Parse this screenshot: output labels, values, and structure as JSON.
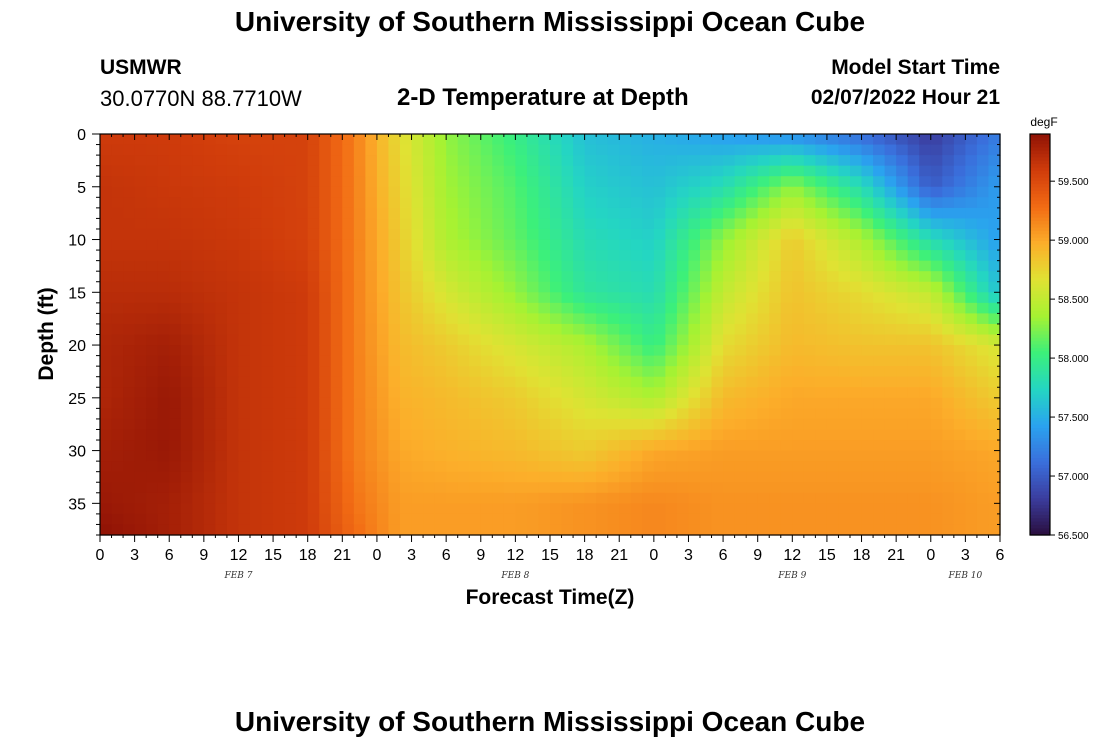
{
  "header": {
    "title": "University of Southern Mississippi Ocean Cube",
    "station": "USMWR",
    "coords": "30.0770N  88.7710W",
    "plot_title": "2-D Temperature at Depth",
    "start_label": "Model Start Time",
    "start_value": "02/07/2022 Hour 21"
  },
  "footer": {
    "title": "University of Southern Mississippi Ocean Cube"
  },
  "chart_data": {
    "type": "heatmap",
    "xlabel": "Forecast Time(Z)",
    "ylabel": "Depth (ft)",
    "x_range_hours": [
      0,
      78
    ],
    "ylim": [
      0,
      38
    ],
    "y_inverted": true,
    "x_tick_labels": [
      "0",
      "3",
      "6",
      "9",
      "12",
      "15",
      "18",
      "21",
      "0",
      "3",
      "6",
      "9",
      "12",
      "15",
      "18",
      "21",
      "0",
      "3",
      "6",
      "9",
      "12",
      "15",
      "18",
      "21",
      "0",
      "3",
      "6"
    ],
    "y_tick_labels": [
      "0",
      "5",
      "10",
      "15",
      "20",
      "25",
      "30",
      "35"
    ],
    "y_ticks": [
      0,
      5,
      10,
      15,
      20,
      25,
      30,
      35
    ],
    "day_labels": [
      {
        "label": "FEB 7",
        "hour": 12
      },
      {
        "label": "FEB 8",
        "hour": 36
      },
      {
        "label": "FEB 9",
        "hour": 60
      },
      {
        "label": "FEB 10",
        "hour": 75
      }
    ],
    "colorbar": {
      "unit": "degF",
      "min": 56.5,
      "max": 59.9,
      "ticks": [
        56.5,
        57.0,
        57.5,
        58.0,
        58.5,
        59.0,
        59.5
      ],
      "tick_labels": [
        "56.500",
        "57.000",
        "57.500",
        "58.000",
        "58.500",
        "59.000",
        "59.500"
      ],
      "colormap": [
        "#2a0e3e",
        "#3b3d9e",
        "#3a6fdc",
        "#2aa3ef",
        "#24d6c2",
        "#3cf07a",
        "#a6f232",
        "#e0e233",
        "#fcae2a",
        "#f26b14",
        "#d03c0b",
        "#8f1205"
      ]
    },
    "depth_levels_ft": [
      0,
      5,
      10,
      15,
      20,
      25,
      30,
      35,
      38
    ],
    "time_points_hours": [
      0,
      6,
      12,
      18,
      22,
      26,
      30,
      36,
      42,
      48,
      54,
      60,
      66,
      72,
      78
    ],
    "temperature_degF": [
      [
        59.6,
        59.6,
        59.55,
        59.55,
        59.2,
        58.7,
        58.3,
        58.0,
        57.6,
        57.5,
        57.4,
        57.3,
        57.1,
        56.8,
        57.2
      ],
      [
        59.65,
        59.62,
        59.6,
        59.55,
        59.2,
        58.75,
        58.35,
        58.1,
        57.7,
        57.6,
        57.8,
        58.3,
        57.8,
        57.0,
        57.4
      ],
      [
        59.65,
        59.65,
        59.62,
        59.55,
        59.2,
        58.8,
        58.4,
        58.15,
        57.8,
        57.7,
        58.3,
        58.8,
        58.4,
        57.8,
        57.4
      ],
      [
        59.7,
        59.7,
        59.65,
        59.6,
        59.2,
        58.85,
        58.6,
        58.3,
        57.9,
        57.8,
        58.5,
        58.85,
        58.7,
        58.5,
        57.6
      ],
      [
        59.75,
        59.8,
        59.65,
        59.6,
        59.2,
        58.9,
        58.8,
        58.6,
        58.4,
        58.0,
        58.7,
        58.9,
        58.85,
        58.85,
        58.6
      ],
      [
        59.75,
        59.85,
        59.65,
        59.6,
        59.2,
        58.95,
        58.9,
        58.8,
        58.6,
        58.4,
        58.9,
        59.0,
        59.0,
        59.0,
        58.8
      ],
      [
        59.8,
        59.85,
        59.65,
        59.6,
        59.2,
        59.0,
        58.95,
        58.9,
        58.8,
        59.0,
        59.05,
        59.05,
        59.05,
        59.05,
        59.0
      ],
      [
        59.85,
        59.8,
        59.65,
        59.6,
        59.25,
        59.05,
        59.05,
        59.05,
        59.1,
        59.15,
        59.1,
        59.1,
        59.1,
        59.1,
        59.05
      ],
      [
        59.9,
        59.8,
        59.65,
        59.6,
        59.3,
        59.05,
        59.05,
        59.05,
        59.1,
        59.15,
        59.1,
        59.1,
        59.1,
        59.1,
        59.05
      ]
    ]
  }
}
